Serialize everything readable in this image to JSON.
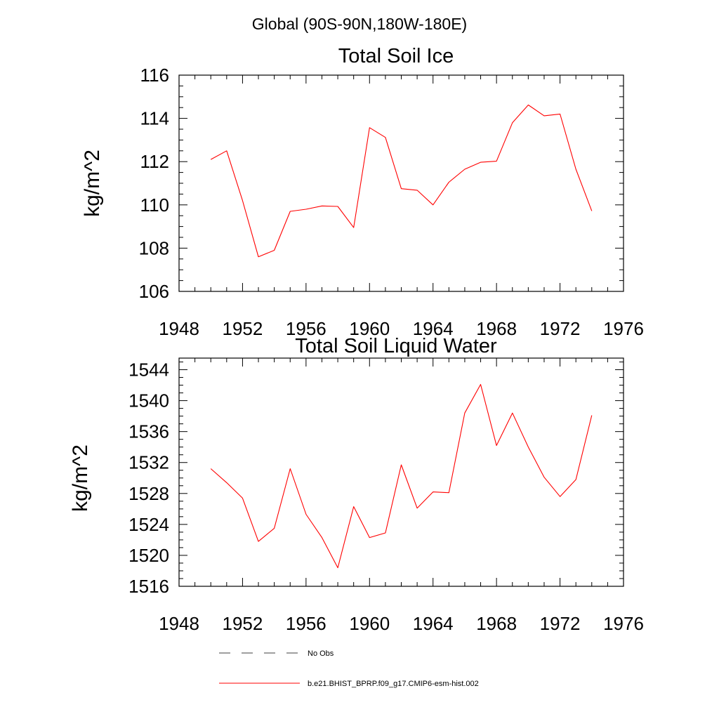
{
  "figure": {
    "suptitle": "Global (90S-90N,180W-180E)"
  },
  "chart_data": [
    {
      "type": "line",
      "title": "Total Soil Ice",
      "xlabel": "",
      "ylabel": "kg/m^2",
      "xlim": [
        1948,
        1976
      ],
      "ylim": [
        106,
        116
      ],
      "xticks": [
        1948,
        1952,
        1956,
        1960,
        1964,
        1968,
        1972,
        1976
      ],
      "yticks": [
        106,
        108,
        110,
        112,
        114,
        116
      ],
      "x_minor_step": 1,
      "y_minor_step": 0.5,
      "grid": false,
      "series": [
        {
          "name": "b.e21.BHIST_BPRP.f09_g17.CMIP6-esm-hist.002",
          "color": "#ff0000",
          "x": [
            1950,
            1951,
            1952,
            1953,
            1954,
            1955,
            1956,
            1957,
            1958,
            1959,
            1960,
            1961,
            1962,
            1963,
            1964,
            1965,
            1966,
            1967,
            1968,
            1969,
            1970,
            1971,
            1972,
            1973,
            1974
          ],
          "values": [
            112.1,
            112.5,
            110.2,
            107.6,
            107.9,
            109.7,
            109.8,
            109.95,
            109.93,
            108.95,
            113.57,
            113.12,
            110.75,
            110.68,
            110.0,
            111.05,
            111.65,
            111.97,
            112.02,
            113.8,
            114.62,
            114.12,
            114.2,
            111.65,
            109.72
          ]
        }
      ]
    },
    {
      "type": "line",
      "title": "Total Soil Liquid Water",
      "xlabel": "",
      "ylabel": "kg/m^2",
      "xlim": [
        1948,
        1976
      ],
      "ylim": [
        1516,
        1545.5
      ],
      "xticks": [
        1948,
        1952,
        1956,
        1960,
        1964,
        1968,
        1972,
        1976
      ],
      "yticks": [
        1516,
        1520,
        1524,
        1528,
        1532,
        1536,
        1540,
        1544
      ],
      "x_minor_step": 1,
      "y_minor_step": 1,
      "grid": false,
      "series": [
        {
          "name": "b.e21.BHIST_BPRP.f09_g17.CMIP6-esm-hist.002",
          "color": "#ff0000",
          "x": [
            1950,
            1951,
            1952,
            1953,
            1954,
            1955,
            1956,
            1957,
            1958,
            1959,
            1960,
            1961,
            1962,
            1963,
            1964,
            1965,
            1966,
            1967,
            1968,
            1969,
            1970,
            1971,
            1972,
            1973,
            1974
          ],
          "values": [
            1531.2,
            1529.4,
            1527.4,
            1521.8,
            1523.5,
            1531.2,
            1525.3,
            1522.3,
            1518.4,
            1526.3,
            1522.3,
            1522.9,
            1531.7,
            1526.1,
            1528.2,
            1528.1,
            1538.4,
            1542.1,
            1534.2,
            1538.4,
            1534.0,
            1530.1,
            1527.6,
            1529.8,
            1538.1
          ]
        }
      ]
    }
  ],
  "legend": {
    "items": [
      {
        "label": "No Obs",
        "style": "dashed",
        "color": "#000000"
      },
      {
        "label": "b.e21.BHIST_BPRP.f09_g17.CMIP6-esm-hist.002",
        "style": "solid",
        "color": "#ff0000"
      }
    ]
  }
}
